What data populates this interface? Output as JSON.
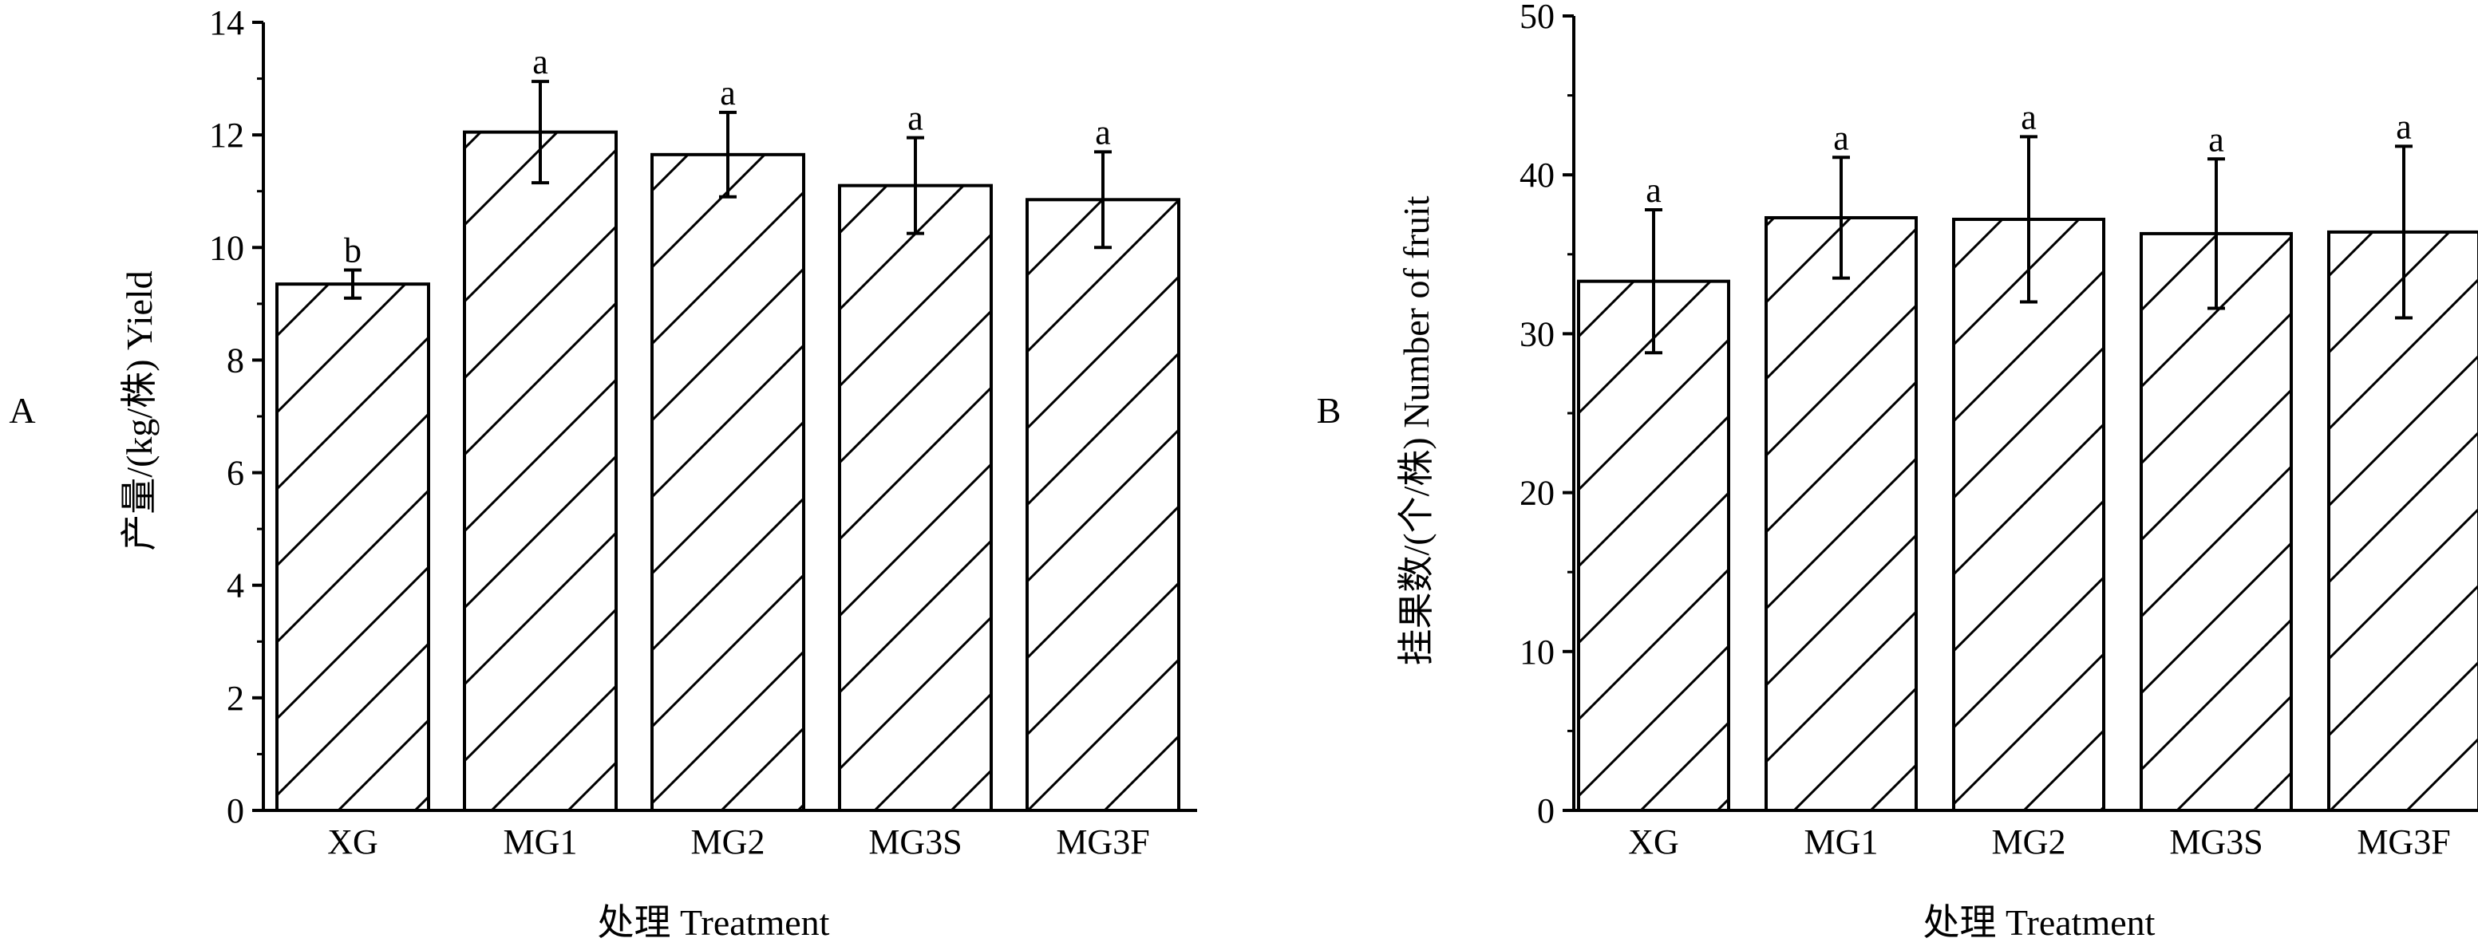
{
  "chart_data": [
    {
      "type": "bar",
      "panel_label": "A",
      "categories": [
        "XG",
        "MG1",
        "MG2",
        "MG3S",
        "MG3F"
      ],
      "values": [
        9.35,
        12.05,
        11.65,
        11.1,
        10.85
      ],
      "errors": [
        0.25,
        0.9,
        0.75,
        0.85,
        0.85
      ],
      "significance": [
        "b",
        "a",
        "a",
        "a",
        "a"
      ],
      "xlabel": "处理  Treatment",
      "ylabel": "产量/(kg/株)  Yield",
      "ylim": [
        0,
        14
      ],
      "yticks": [
        "0",
        "2",
        "4",
        "6",
        "8",
        "10",
        "12",
        "14"
      ],
      "ytick_values": [
        0,
        2,
        4,
        6,
        8,
        10,
        12,
        14
      ],
      "bar_fill": "hatched",
      "grid": false
    },
    {
      "type": "bar",
      "panel_label": "B",
      "categories": [
        "XG",
        "MG1",
        "MG2",
        "MG3S",
        "MG3F"
      ],
      "values": [
        33.3,
        37.3,
        37.2,
        36.3,
        36.4
      ],
      "errors": [
        4.5,
        3.8,
        5.2,
        4.7,
        5.4
      ],
      "significance": [
        "a",
        "a",
        "a",
        "a",
        "a"
      ],
      "xlabel": "处理  Treatment",
      "ylabel": "挂果数/(个/株)  Number of fruit",
      "ylim": [
        0,
        50
      ],
      "yticks": [
        "0",
        "10",
        "20",
        "30",
        "40",
        "50"
      ],
      "ytick_values": [
        0,
        10,
        20,
        30,
        40,
        50
      ],
      "bar_fill": "hatched",
      "grid": false
    }
  ]
}
